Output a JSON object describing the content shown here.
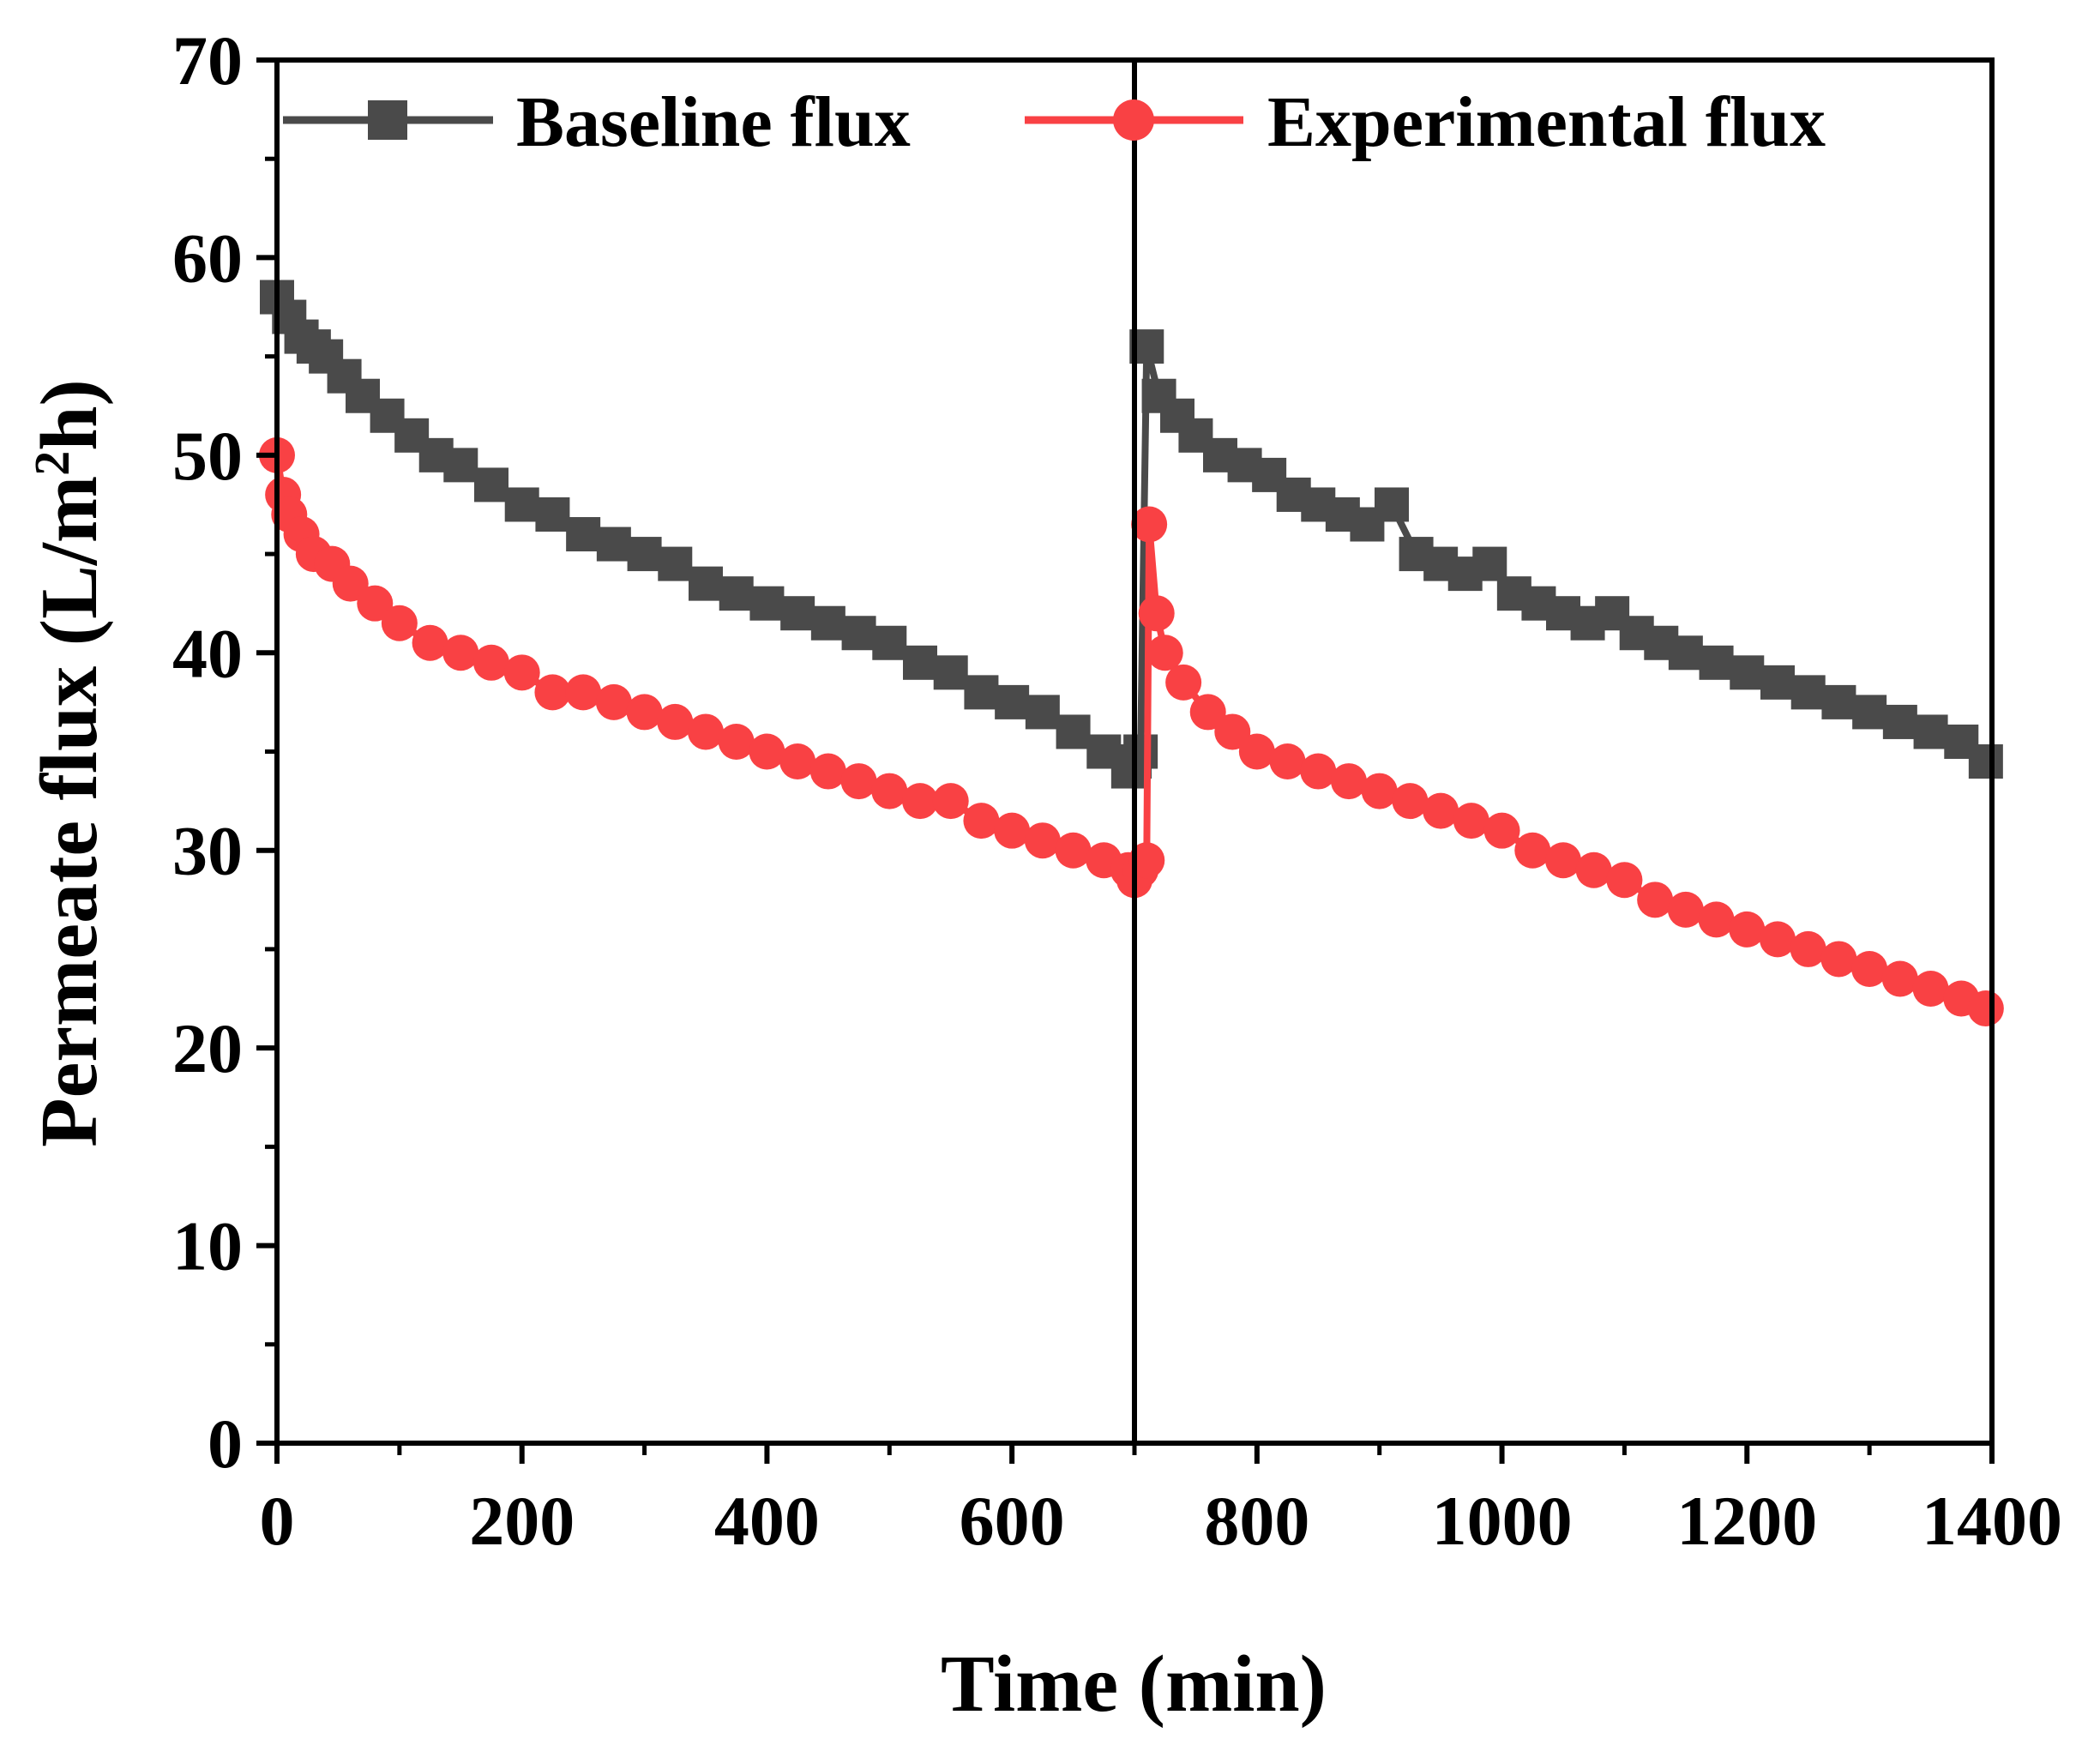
{
  "chart_data": {
    "type": "line",
    "title": "",
    "xlabel": "Time (min)",
    "ylabel_prefix": "Permeate flux (L/m",
    "ylabel_sup": "2",
    "ylabel_suffix": "h)",
    "xlim": [
      0,
      1400
    ],
    "ylim": [
      0,
      70
    ],
    "x_ticks": [
      0,
      200,
      400,
      600,
      800,
      1000,
      1200,
      1400
    ],
    "y_ticks": [
      0,
      10,
      20,
      30,
      40,
      50,
      60,
      70
    ],
    "x_tick_labels": [
      "0",
      "200",
      "400",
      "600",
      "800",
      "1000",
      "1200",
      "1400"
    ],
    "y_tick_labels": [
      "0",
      "10",
      "20",
      "30",
      "40",
      "50",
      "60",
      "70"
    ],
    "vline_x": 700,
    "legend_position": "top",
    "series": [
      {
        "name": "Baseline flux",
        "label": "Baseline flux",
        "color": "#4a4a4a",
        "marker": "square",
        "x": [
          0,
          10,
          20,
          30,
          40,
          55,
          70,
          90,
          110,
          130,
          150,
          175,
          200,
          225,
          250,
          275,
          300,
          325,
          350,
          375,
          400,
          425,
          450,
          475,
          500,
          525,
          550,
          575,
          600,
          625,
          650,
          675,
          695,
          700,
          705,
          710,
          720,
          735,
          750,
          770,
          790,
          810,
          830,
          850,
          870,
          890,
          910,
          930,
          950,
          970,
          990,
          1010,
          1030,
          1050,
          1070,
          1090,
          1110,
          1130,
          1150,
          1175,
          1200,
          1225,
          1250,
          1275,
          1300,
          1325,
          1350,
          1375,
          1395
        ],
        "y": [
          58,
          57,
          56,
          55.5,
          55,
          54,
          53,
          52,
          51,
          50,
          49.5,
          48.5,
          47.5,
          47,
          46,
          45.5,
          45,
          44.5,
          43.5,
          43,
          42.5,
          42,
          41.5,
          41,
          40.5,
          39.5,
          39,
          38,
          37.5,
          37,
          36,
          35,
          34,
          34.5,
          35,
          55.5,
          53,
          52,
          51,
          50,
          49.5,
          49,
          48,
          47.5,
          47,
          46.5,
          47.5,
          45,
          44.5,
          44,
          44.5,
          43,
          42.5,
          42,
          41.5,
          42,
          41,
          40.5,
          40,
          39.5,
          39,
          38.5,
          38,
          37.5,
          37,
          36.5,
          36,
          35.5,
          34.5
        ]
      },
      {
        "name": "Experimental flux",
        "label": "Experimental flux",
        "color": "#f94144",
        "marker": "circle",
        "x": [
          0,
          5,
          10,
          20,
          30,
          45,
          60,
          80,
          100,
          125,
          150,
          175,
          200,
          225,
          250,
          275,
          300,
          325,
          350,
          375,
          400,
          425,
          450,
          475,
          500,
          525,
          550,
          575,
          600,
          625,
          650,
          675,
          695,
          700,
          705,
          710,
          712,
          718,
          725,
          740,
          760,
          780,
          800,
          825,
          850,
          875,
          900,
          925,
          950,
          975,
          1000,
          1025,
          1050,
          1075,
          1100,
          1125,
          1150,
          1175,
          1200,
          1225,
          1250,
          1275,
          1300,
          1325,
          1350,
          1375,
          1395
        ],
        "y": [
          50,
          48,
          47,
          46,
          45,
          44.5,
          43.5,
          42.5,
          41.5,
          40.5,
          40,
          39.5,
          39,
          38,
          38,
          37.5,
          37,
          36.5,
          36,
          35.5,
          35,
          34.5,
          34,
          33.5,
          33,
          32.5,
          32.5,
          31.5,
          31,
          30.5,
          30,
          29.5,
          29,
          28.5,
          29,
          29.5,
          46.5,
          42,
          40,
          38.5,
          37,
          36,
          35,
          34.5,
          34,
          33.5,
          33,
          32.5,
          32,
          31.5,
          31,
          30,
          29.5,
          29,
          28.5,
          27.5,
          27,
          26.5,
          26,
          25.5,
          25,
          24.5,
          24,
          23.5,
          23,
          22.5,
          22
        ]
      }
    ]
  }
}
